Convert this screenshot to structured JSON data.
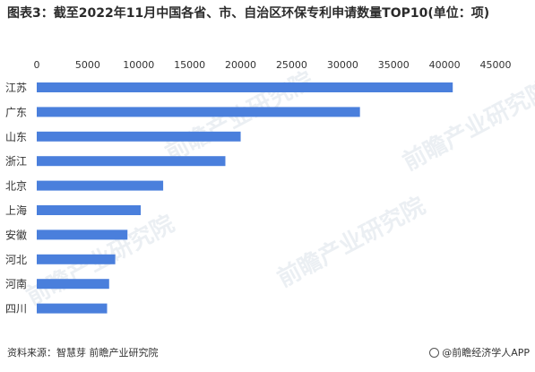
{
  "title": "图表3：截至2022年11月中国各省、市、自治区环保专利申请数量TOP10(单位：项)",
  "footer": {
    "source": "资料来源：智慧芽 前瞻产业研究院",
    "brand": "@前瞻经济学人APP"
  },
  "watermark": "前瞻产业研究院",
  "colors": {
    "bar": "#4a7fdc",
    "text": "#333333",
    "axis": "#666666"
  },
  "chart_data": {
    "type": "bar",
    "orientation": "horizontal",
    "categories": [
      "江苏",
      "广东",
      "山东",
      "浙江",
      "北京",
      "上海",
      "安徽",
      "河北",
      "河南",
      "四川"
    ],
    "values": [
      40800,
      31700,
      20000,
      18500,
      12400,
      10200,
      8900,
      7700,
      7100,
      6900
    ],
    "xlim": [
      0,
      45000
    ],
    "xticks": [
      0,
      5000,
      10000,
      15000,
      20000,
      25000,
      30000,
      35000,
      40000,
      45000
    ],
    "xaxis_position": "top",
    "grid": false,
    "title": "图表3：截至2022年11月中国各省、市、自治区环保专利申请数量TOP10(单位：项)"
  }
}
